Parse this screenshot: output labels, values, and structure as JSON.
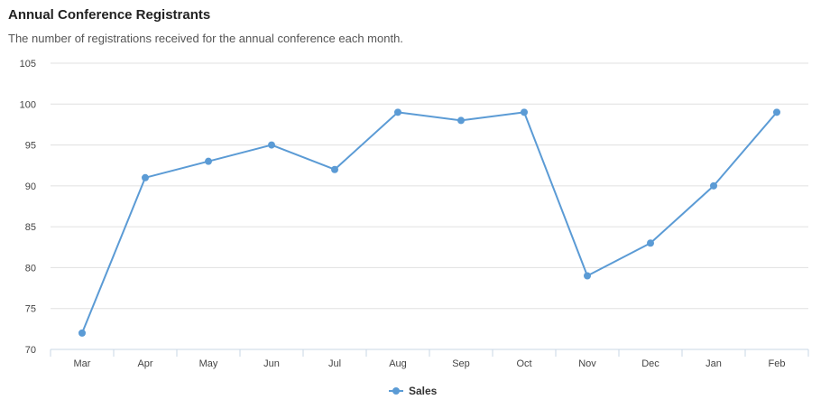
{
  "chart_data": {
    "type": "line",
    "title": "Annual Conference Registrants",
    "subtitle": "The number of registrations received for the annual conference each month.",
    "categories": [
      "Mar",
      "Apr",
      "May",
      "Jun",
      "Jul",
      "Aug",
      "Sep",
      "Oct",
      "Nov",
      "Dec",
      "Jan",
      "Feb"
    ],
    "series": [
      {
        "name": "Sales",
        "values": [
          72,
          91,
          93,
          95,
          92,
          99,
          98,
          99,
          79,
          83,
          90,
          99
        ]
      }
    ],
    "ylim": [
      70,
      105
    ],
    "yticks": [
      70,
      75,
      80,
      85,
      90,
      95,
      100,
      105
    ],
    "grid": true,
    "legend": "bottom-center",
    "colors": {
      "series": "#5b9bd5",
      "grid": "#e0e0e0",
      "axis": "#c8d7e6"
    }
  }
}
